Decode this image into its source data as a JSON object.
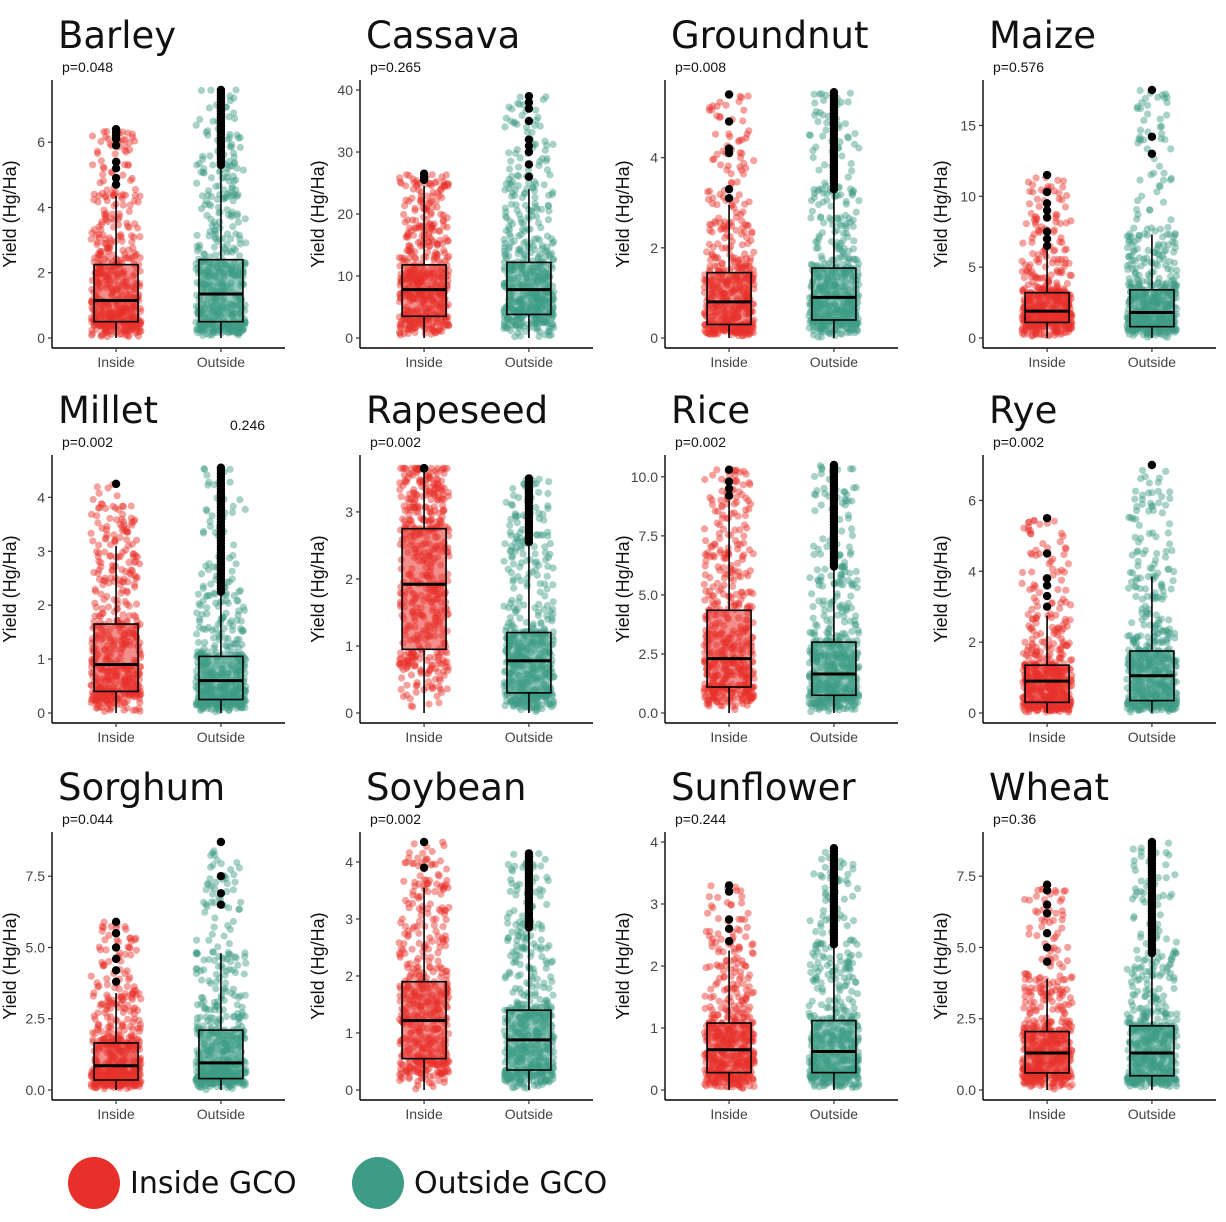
{
  "colors": {
    "inside": "#e8302a",
    "outside": "#3d9c85"
  },
  "legend": {
    "inside_label": "Inside GCO",
    "outside_label": "Outside GCO"
  },
  "chart_data": [
    {
      "type": "box",
      "title": "Barley",
      "p_value": "p=0.048",
      "ylabel": "Yield (Hg/Ha)",
      "ylim": [
        0,
        7.6
      ],
      "yticks": [
        "0",
        "2",
        "4",
        "6"
      ],
      "ytick_values": [
        0,
        2,
        4,
        6
      ],
      "categories": [
        "Inside",
        "Outside"
      ],
      "series": [
        {
          "q1": 0.5,
          "median": 1.15,
          "q3": 2.25,
          "whisker_low": 0,
          "whisker_high": 4.35,
          "max": 6.4,
          "outliers": [
            4.7,
            4.9,
            5.2,
            5.4,
            5.9,
            6.1,
            6.2,
            6.3,
            6.4
          ]
        },
        {
          "q1": 0.5,
          "median": 1.35,
          "q3": 2.4,
          "whisker_low": 0,
          "whisker_high": 5.3,
          "max": 7.6,
          "outliers": []
        }
      ]
    },
    {
      "type": "box",
      "title": "Cassava",
      "p_value": "p=0.265",
      "ylabel": "Yield (Hg/Ha)",
      "ylim": [
        0,
        40
      ],
      "yticks": [
        "0",
        "10",
        "20",
        "30",
        "40"
      ],
      "ytick_values": [
        0,
        10,
        20,
        30,
        40
      ],
      "categories": [
        "Inside",
        "Outside"
      ],
      "series": [
        {
          "q1": 3.5,
          "median": 7.8,
          "q3": 11.8,
          "whisker_low": 0,
          "whisker_high": 24.5,
          "max": 26.5,
          "outliers": [
            25.5,
            26,
            26.5
          ]
        },
        {
          "q1": 3.8,
          "median": 7.8,
          "q3": 12.2,
          "whisker_low": 0,
          "whisker_high": 24,
          "max": 39,
          "outliers": [
            26,
            28,
            30,
            31,
            32,
            35,
            37,
            38,
            39
          ]
        }
      ]
    },
    {
      "type": "box",
      "title": "Groundnut",
      "p_value": "p=0.008",
      "ylabel": "Yield (Hg/Ha)",
      "ylim": [
        0,
        5.5
      ],
      "yticks": [
        "0",
        "2",
        "4"
      ],
      "ytick_values": [
        0,
        2,
        4
      ],
      "categories": [
        "Inside",
        "Outside"
      ],
      "series": [
        {
          "q1": 0.3,
          "median": 0.8,
          "q3": 1.45,
          "whisker_low": 0,
          "whisker_high": 2.95,
          "max": 5.4,
          "outliers": [
            3.1,
            3.3,
            4.1,
            4.2,
            4.8,
            5.4
          ]
        },
        {
          "q1": 0.4,
          "median": 0.9,
          "q3": 1.55,
          "whisker_low": 0,
          "whisker_high": 3.3,
          "max": 5.45,
          "outliers": []
        }
      ]
    },
    {
      "type": "box",
      "title": "Maize",
      "p_value": "p=0.576",
      "ylabel": "Yield (Hg/Ha)",
      "ylim": [
        0,
        17.5
      ],
      "yticks": [
        "0",
        "5",
        "10",
        "15"
      ],
      "ytick_values": [
        0,
        5,
        10,
        15
      ],
      "categories": [
        "Inside",
        "Outside"
      ],
      "series": [
        {
          "q1": 1.1,
          "median": 1.9,
          "q3": 3.2,
          "whisker_low": 0,
          "whisker_high": 6.2,
          "max": 11.5,
          "outliers": [
            6.5,
            7,
            7.5,
            8.5,
            9,
            9.5,
            10.3,
            11.5
          ]
        },
        {
          "q1": 0.8,
          "median": 1.8,
          "q3": 3.4,
          "whisker_low": 0,
          "whisker_high": 7.3,
          "max": 17.5,
          "outliers": [
            13,
            14.2,
            17.5
          ]
        }
      ]
    },
    {
      "type": "box",
      "title": "Millet",
      "p_value": "p=0.002",
      "note": "0.246",
      "ylabel": "Yield (Hg/Ha)",
      "ylim": [
        0,
        4.6
      ],
      "yticks": [
        "0",
        "1",
        "2",
        "3",
        "4"
      ],
      "ytick_values": [
        0,
        1,
        2,
        3,
        4
      ],
      "categories": [
        "Inside",
        "Outside"
      ],
      "series": [
        {
          "q1": 0.4,
          "median": 0.9,
          "q3": 1.65,
          "whisker_low": 0,
          "whisker_high": 3.1,
          "max": 4.25,
          "outliers": [
            4.25
          ]
        },
        {
          "q1": 0.25,
          "median": 0.6,
          "q3": 1.05,
          "whisker_low": 0,
          "whisker_high": 2.25,
          "max": 4.55,
          "outliers": []
        }
      ]
    },
    {
      "type": "box",
      "title": "Rapeseed",
      "p_value": "p=0.002",
      "ylabel": "Yield (Hg/Ha)",
      "ylim": [
        0,
        3.7
      ],
      "yticks": [
        "0",
        "1",
        "2",
        "3"
      ],
      "ytick_values": [
        0,
        1,
        2,
        3
      ],
      "categories": [
        "Inside",
        "Outside"
      ],
      "series": [
        {
          "q1": 0.95,
          "median": 1.92,
          "q3": 2.75,
          "whisker_low": 0,
          "whisker_high": 3.65,
          "max": 3.65,
          "outliers": []
        },
        {
          "q1": 0.3,
          "median": 0.78,
          "q3": 1.2,
          "whisker_low": 0,
          "whisker_high": 2.55,
          "max": 3.5,
          "outliers": []
        }
      ]
    },
    {
      "type": "box",
      "title": "Rice",
      "p_value": "p=0.002",
      "ylabel": "Yield (Hg/Ha)",
      "ylim": [
        0,
        10.5
      ],
      "yticks": [
        "0.0",
        "2.5",
        "5.0",
        "7.5",
        "10.0"
      ],
      "ytick_values": [
        0,
        2.5,
        5,
        7.5,
        10
      ],
      "categories": [
        "Inside",
        "Outside"
      ],
      "series": [
        {
          "q1": 1.1,
          "median": 2.3,
          "q3": 4.35,
          "whisker_low": 0,
          "whisker_high": 9,
          "max": 10.3,
          "outliers": [
            9.2,
            9.5,
            9.8,
            10.3
          ]
        },
        {
          "q1": 0.75,
          "median": 1.65,
          "q3": 3,
          "whisker_low": 0,
          "whisker_high": 6.2,
          "max": 10.5,
          "outliers": []
        }
      ]
    },
    {
      "type": "box",
      "title": "Rye",
      "p_value": "p=0.002",
      "ylabel": "Yield (Hg/Ha)",
      "ylim": [
        0,
        7
      ],
      "yticks": [
        "0",
        "2",
        "4",
        "6"
      ],
      "ytick_values": [
        0,
        2,
        4,
        6
      ],
      "categories": [
        "Inside",
        "Outside"
      ],
      "series": [
        {
          "q1": 0.3,
          "median": 0.9,
          "q3": 1.35,
          "whisker_low": 0,
          "whisker_high": 2.75,
          "max": 5.5,
          "outliers": [
            3,
            3.3,
            3.6,
            3.8,
            4.5,
            5.5
          ]
        },
        {
          "q1": 0.35,
          "median": 1.05,
          "q3": 1.75,
          "whisker_low": 0,
          "whisker_high": 3.85,
          "max": 7,
          "outliers": [
            7
          ]
        }
      ]
    },
    {
      "type": "box",
      "title": "Sorghum",
      "p_value": "p=0.044",
      "ylabel": "Yield (Hg/Ha)",
      "ylim": [
        0,
        8.7
      ],
      "yticks": [
        "0.0",
        "2.5",
        "5.0",
        "7.5"
      ],
      "ytick_values": [
        0,
        2.5,
        5,
        7.5
      ],
      "categories": [
        "Inside",
        "Outside"
      ],
      "series": [
        {
          "q1": 0.35,
          "median": 0.85,
          "q3": 1.65,
          "whisker_low": 0,
          "whisker_high": 3.4,
          "max": 5.9,
          "outliers": [
            3.8,
            4.2,
            4.6,
            5,
            5.5,
            5.9
          ]
        },
        {
          "q1": 0.4,
          "median": 0.95,
          "q3": 2.1,
          "whisker_low": 0,
          "whisker_high": 4.8,
          "max": 8.7,
          "outliers": [
            6.5,
            6.9,
            7.5,
            8.7
          ]
        }
      ]
    },
    {
      "type": "box",
      "title": "Soybean",
      "p_value": "p=0.002",
      "ylabel": "Yield (Hg/Ha)",
      "ylim": [
        0,
        4.35
      ],
      "yticks": [
        "0",
        "1",
        "2",
        "3",
        "4"
      ],
      "ytick_values": [
        0,
        1,
        2,
        3,
        4
      ],
      "categories": [
        "Inside",
        "Outside"
      ],
      "series": [
        {
          "q1": 0.55,
          "median": 1.22,
          "q3": 1.9,
          "whisker_low": 0,
          "whisker_high": 3.55,
          "max": 4.35,
          "outliers": [
            3.9,
            4.35
          ]
        },
        {
          "q1": 0.35,
          "median": 0.88,
          "q3": 1.4,
          "whisker_low": 0,
          "whisker_high": 2.85,
          "max": 4.15,
          "outliers": []
        }
      ]
    },
    {
      "type": "box",
      "title": "Sunflower",
      "p_value": "p=0.244",
      "ylabel": "Yield (Hg/Ha)",
      "ylim": [
        0,
        4
      ],
      "yticks": [
        "0",
        "1",
        "2",
        "3",
        "4"
      ],
      "ytick_values": [
        0,
        1,
        2,
        3,
        4
      ],
      "categories": [
        "Inside",
        "Outside"
      ],
      "series": [
        {
          "q1": 0.28,
          "median": 0.65,
          "q3": 1.08,
          "whisker_low": 0,
          "whisker_high": 2.25,
          "max": 3.3,
          "outliers": [
            2.4,
            2.6,
            2.75,
            3.2,
            3.3
          ]
        },
        {
          "q1": 0.28,
          "median": 0.62,
          "q3": 1.12,
          "whisker_low": 0,
          "whisker_high": 2.35,
          "max": 3.9,
          "outliers": []
        }
      ]
    },
    {
      "type": "box",
      "title": "Wheat",
      "p_value": "p=0.36",
      "ylabel": "Yield (Hg/Ha)",
      "ylim": [
        0,
        8.7
      ],
      "yticks": [
        "0.0",
        "2.5",
        "5.0",
        "7.5"
      ],
      "ytick_values": [
        0,
        2.5,
        5,
        7.5
      ],
      "categories": [
        "Inside",
        "Outside"
      ],
      "series": [
        {
          "q1": 0.6,
          "median": 1.3,
          "q3": 2.05,
          "whisker_low": 0,
          "whisker_high": 3.9,
          "max": 7.2,
          "outliers": [
            4.5,
            5,
            5.5,
            6.2,
            6.5,
            7,
            7.2
          ]
        },
        {
          "q1": 0.5,
          "median": 1.3,
          "q3": 2.25,
          "whisker_low": 0,
          "whisker_high": 4.8,
          "max": 8.7,
          "outliers": []
        }
      ]
    }
  ]
}
